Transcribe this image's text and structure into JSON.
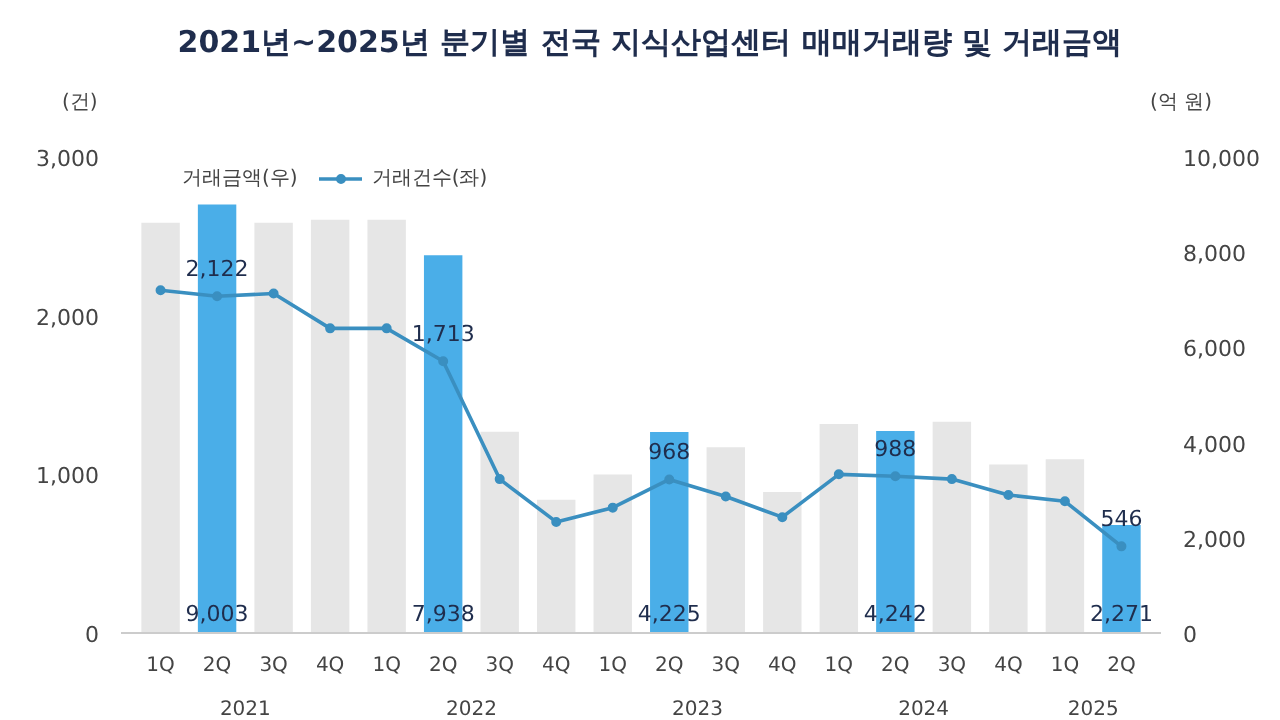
{
  "chart_data": {
    "type": "bar",
    "title": "2021년~2025년 분기별 전국 지식산업센터 매매거래량 및 거래금액",
    "ylabel": "(건)",
    "y2label": "(억 원)",
    "categories": [
      "1Q",
      "2Q",
      "3Q",
      "4Q",
      "1Q",
      "2Q",
      "3Q",
      "4Q",
      "1Q",
      "2Q",
      "3Q",
      "4Q",
      "1Q",
      "2Q",
      "3Q",
      "4Q",
      "1Q",
      "2Q"
    ],
    "annotations": [
      "2021",
      "2022",
      "2023",
      "2024",
      "2025"
    ],
    "series": [
      {
        "name": "거래금액(우)",
        "type": "bar",
        "axis": "y2",
        "color": "#e6e6e6",
        "colors": [
          "#e6e6e6",
          "#4aaee8",
          "#e6e6e6",
          "#e6e6e6",
          "#e6e6e6",
          "#4aaee8",
          "#e6e6e6",
          "#e6e6e6",
          "#e6e6e6",
          "#4aaee8",
          "#e6e6e6",
          "#e6e6e6",
          "#e6e6e6",
          "#4aaee8",
          "#e6e6e6",
          "#e6e6e6",
          "#e6e6e6",
          "#4aaee8"
        ],
        "values": [
          8620,
          9003,
          8620,
          8680,
          8680,
          7938,
          4230,
          2800,
          3330,
          4225,
          3900,
          2960,
          4390,
          4242,
          4440,
          3540,
          3650,
          2271
        ],
        "value_labels": [
          null,
          "9,003",
          null,
          null,
          null,
          "7,938",
          null,
          null,
          null,
          "4,225",
          null,
          null,
          null,
          "4,242",
          null,
          null,
          null,
          "2,271"
        ]
      },
      {
        "name": "거래건수(좌)",
        "type": "line",
        "color": "#3a8fc0",
        "values": [
          2160,
          2122,
          2140,
          1920,
          1920,
          1713,
          970,
          700,
          790,
          968,
          860,
          730,
          1000,
          988,
          970,
          870,
          830,
          546
        ],
        "value_labels": [
          null,
          "2,122",
          null,
          null,
          null,
          "1,713",
          null,
          null,
          null,
          "968",
          null,
          null,
          null,
          "988",
          null,
          null,
          null,
          "546"
        ]
      }
    ],
    "ylim": [
      0,
      3000
    ],
    "yticks": [
      {
        "value": 0,
        "label": "0"
      },
      {
        "value": 1000,
        "label": "1,000"
      },
      {
        "value": 2000,
        "label": "2,000"
      },
      {
        "value": 3000,
        "label": "3,000"
      }
    ],
    "y2lim": [
      0,
      10000
    ],
    "y2ticks": [
      {
        "value": 0,
        "label": "0"
      },
      {
        "value": 2000,
        "label": "2,000"
      },
      {
        "value": 4000,
        "label": "4,000"
      },
      {
        "value": 6000,
        "label": "6,000"
      },
      {
        "value": 8000,
        "label": "8,000"
      },
      {
        "value": 10000,
        "label": "10,000"
      }
    ],
    "legend": "top left",
    "marker": "circle",
    "line_style": "solid"
  }
}
